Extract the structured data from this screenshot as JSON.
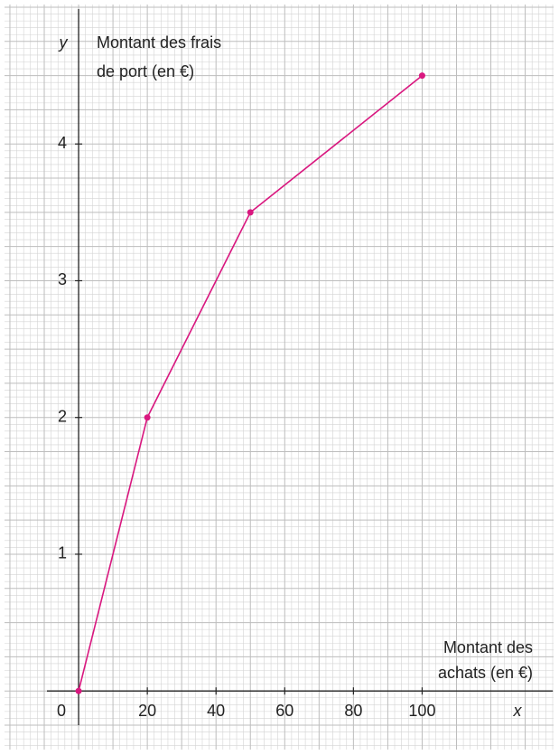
{
  "chart_data": {
    "type": "line",
    "x": [
      0,
      20,
      50,
      100
    ],
    "series": [
      {
        "color": "#d9177f",
        "values": [
          0,
          2,
          3.5,
          4.5
        ]
      }
    ],
    "xlim": [
      -10,
      138
    ],
    "ylim": [
      -0.25,
      5
    ],
    "xticks": [
      0,
      20,
      40,
      60,
      80,
      100
    ],
    "yticks": [
      1,
      2,
      3,
      4
    ],
    "x_axis_symbol": "x",
    "y_axis_symbol": "y",
    "xlabel": [
      "Montant des",
      "achats (en €)"
    ],
    "ylabel": [
      "Montant des frais",
      "de port (en €)"
    ],
    "grid": true
  }
}
